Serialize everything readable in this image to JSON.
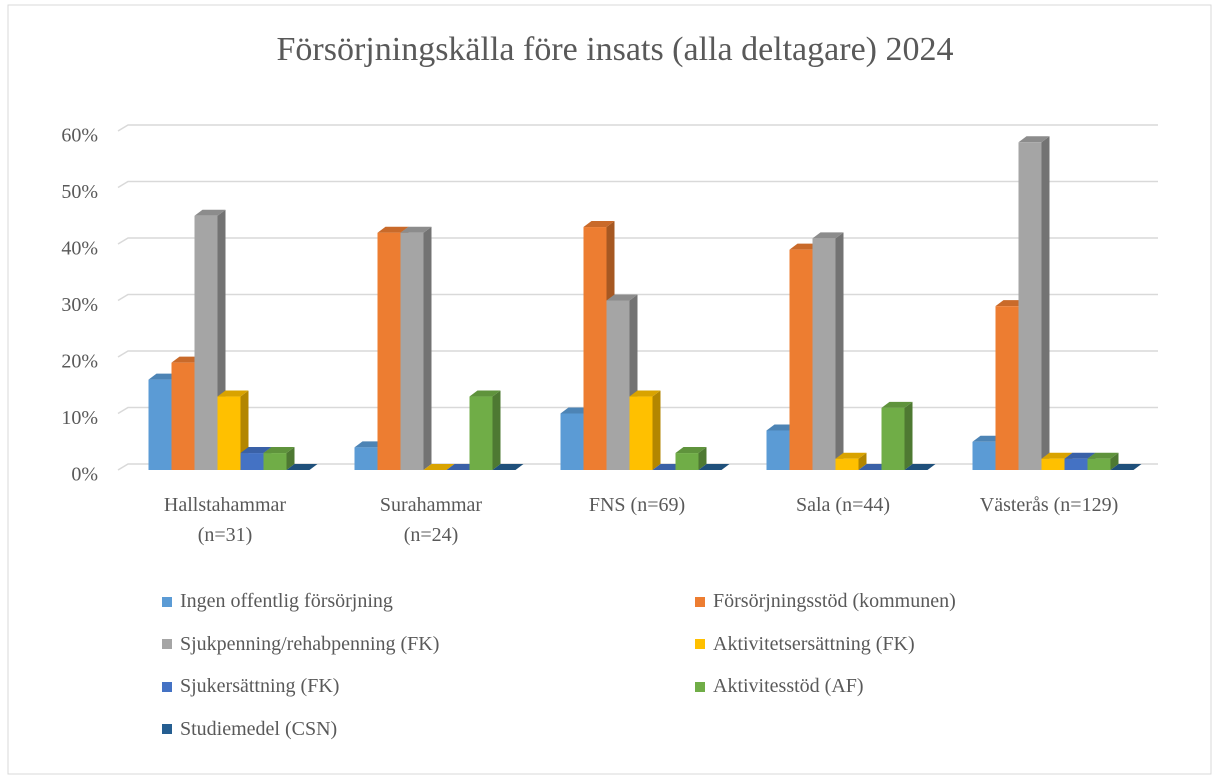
{
  "chart_data": {
    "type": "bar3d",
    "title": "Försörjningskälla  före insats (alla deltagare) 2024",
    "categories": [
      "Hallstahammar (n=31)",
      "Surahammar (n=24)",
      "FNS (n=69)",
      "Sala (n=44)",
      "Västerås (n=129)"
    ],
    "series": [
      {
        "name": "Ingen offentlig försörjning",
        "color": "#5b9bd5",
        "values": [
          16,
          4,
          10,
          7,
          5
        ]
      },
      {
        "name": "Försörjningsstöd (kommunen)",
        "color": "#ed7d31",
        "values": [
          19,
          42,
          43,
          39,
          29
        ]
      },
      {
        "name": "Sjukpenning/rehabpenning (FK)",
        "color": "#a5a5a5",
        "values": [
          45,
          42,
          30,
          41,
          58
        ]
      },
      {
        "name": "Aktivitetsersättning (FK)",
        "color": "#ffc000",
        "values": [
          13,
          0,
          13,
          2,
          2
        ]
      },
      {
        "name": "Sjukersättning (FK)",
        "color": "#4472c4",
        "values": [
          3,
          0,
          0,
          0,
          2
        ]
      },
      {
        "name": "Aktivitesstöd (AF)",
        "color": "#70ad47",
        "values": [
          3,
          13,
          3,
          11,
          2
        ]
      },
      {
        "name": "Studiemedel (CSN)",
        "color": "#255e91",
        "values": [
          0,
          0,
          0,
          0,
          0
        ]
      }
    ],
    "ylim": [
      0,
      60
    ],
    "yticks": [
      {
        "value": 0,
        "label": "0%"
      },
      {
        "value": 10,
        "label": "10%"
      },
      {
        "value": 20,
        "label": "20%"
      },
      {
        "value": 30,
        "label": "30%"
      },
      {
        "value": 40,
        "label": "40%"
      },
      {
        "value": 50,
        "label": "50%"
      },
      {
        "value": 60,
        "label": "60%"
      }
    ],
    "grid": true
  }
}
